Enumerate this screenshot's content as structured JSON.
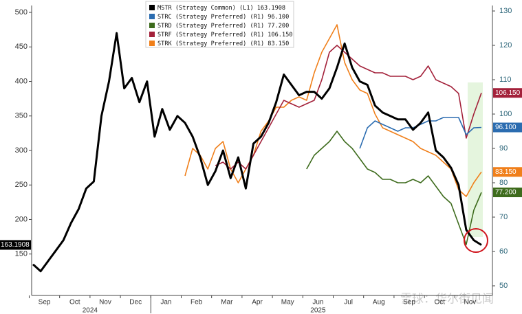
{
  "chart_data": {
    "type": "line",
    "categories": [
      "Sep",
      null,
      null,
      null,
      "Oct",
      null,
      null,
      null,
      "Nov",
      null,
      null,
      null,
      "Dec",
      null,
      null,
      null,
      "Jan",
      null,
      null,
      null,
      "Feb",
      null,
      null,
      null,
      "Mar",
      null,
      null,
      null,
      "Apr",
      null,
      null,
      null,
      "May",
      null,
      null,
      null,
      "Jun",
      null,
      null,
      null,
      "Jul",
      null,
      null,
      null,
      "Aug",
      null,
      null,
      null,
      "Sep",
      null,
      null,
      null,
      "Oct",
      null,
      null,
      null,
      "Nov",
      null,
      null,
      null
    ],
    "year_labels": [
      "2024",
      "2025"
    ],
    "series": [
      {
        "name": "MSTR (Strategy Common) (L1)",
        "color": "#000000",
        "axis": "y",
        "values": [
          135,
          125,
          140,
          155,
          170,
          195,
          215,
          245,
          255,
          350,
          400,
          470,
          390,
          405,
          370,
          400,
          320,
          360,
          330,
          350,
          340,
          320,
          290,
          250,
          270,
          300,
          260,
          290,
          245,
          310,
          320,
          340,
          370,
          410,
          395,
          380,
          385,
          385,
          375,
          390,
          420,
          455,
          420,
          400,
          395,
          365,
          355,
          350,
          345,
          345,
          330,
          340,
          355,
          300,
          290,
          275,
          250,
          185,
          170,
          163.1908
        ]
      },
      {
        "name": "STRC (Strategy Preferred) (R1)",
        "color": "#2b6cb0",
        "axis": "y2",
        "last_value_label": "96.100",
        "values": [
          null,
          null,
          null,
          null,
          null,
          null,
          null,
          null,
          null,
          null,
          null,
          null,
          null,
          null,
          null,
          null,
          null,
          null,
          null,
          null,
          null,
          null,
          null,
          null,
          null,
          null,
          null,
          null,
          null,
          null,
          null,
          null,
          null,
          null,
          null,
          null,
          null,
          null,
          null,
          null,
          null,
          null,
          null,
          90,
          96,
          98,
          97,
          96,
          95,
          96,
          96,
          97,
          98,
          98,
          99,
          99,
          99,
          94,
          96,
          96.1
        ]
      },
      {
        "name": "STRD (Strategy Preferred) (R1)",
        "color": "#3d6b1c",
        "axis": "y2",
        "last_value_label": "77.200",
        "values": [
          null,
          null,
          null,
          null,
          null,
          null,
          null,
          null,
          null,
          null,
          null,
          null,
          null,
          null,
          null,
          null,
          null,
          null,
          null,
          null,
          null,
          null,
          null,
          null,
          null,
          null,
          null,
          null,
          null,
          null,
          null,
          null,
          null,
          null,
          null,
          null,
          84,
          88,
          90,
          92,
          95,
          92,
          90,
          87,
          84,
          83,
          81,
          81,
          80,
          80,
          81,
          80,
          82,
          79,
          76,
          74,
          68,
          62,
          72,
          77.2
        ]
      },
      {
        "name": "STRF (Strategy Preferred) (R1)",
        "color": "#a3213a",
        "axis": "y2",
        "last_value_label": "106.150",
        "values": [
          null,
          null,
          null,
          null,
          null,
          null,
          null,
          null,
          null,
          null,
          null,
          null,
          null,
          null,
          null,
          null,
          null,
          null,
          null,
          null,
          null,
          null,
          null,
          null,
          85,
          86,
          84,
          86,
          84,
          88,
          92,
          96,
          100,
          104,
          103,
          102,
          103,
          104,
          110,
          118,
          120,
          118,
          116,
          114,
          113,
          112,
          112,
          111,
          111,
          111,
          110,
          111,
          114,
          110,
          109,
          108,
          106,
          93,
          100,
          106.15
        ]
      },
      {
        "name": "STRK (Strategy Preferred) (R1)",
        "color": "#f07f1a",
        "axis": "y2",
        "last_value_label": "83.150",
        "values": [
          null,
          null,
          null,
          null,
          null,
          null,
          null,
          null,
          null,
          null,
          null,
          null,
          null,
          null,
          null,
          null,
          null,
          null,
          null,
          null,
          82,
          90,
          88,
          84,
          90,
          92,
          84,
          80,
          84,
          88,
          95,
          98,
          102,
          102,
          104,
          105,
          104,
          112,
          118,
          122,
          126,
          115,
          110,
          107,
          106,
          100,
          96,
          95,
          94,
          93,
          92,
          90,
          89,
          88,
          86,
          84,
          78,
          76,
          80,
          83.15
        ]
      }
    ],
    "ylim": [
      90,
      510
    ],
    "yticks": [
      150,
      200,
      250,
      300,
      350,
      400,
      450,
      500
    ],
    "y2lim": [
      47.2,
      131.6
    ],
    "y2ticks": [
      50,
      60,
      70,
      80,
      90,
      100,
      110,
      120,
      130
    ],
    "grid": false,
    "legend": "top-left",
    "watermark": "雪球：华尔街见闻"
  }
}
